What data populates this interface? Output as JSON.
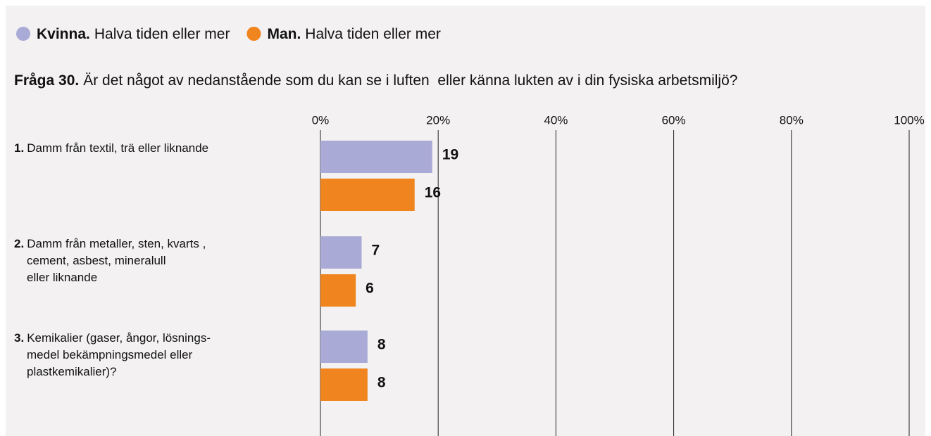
{
  "chart_data": {
    "type": "hbar",
    "title_label": "Fråga 30.",
    "title": "Är det något av nedanstående som du kan se i luften  eller känna lukten av i din fysiska arbetsmiljö?",
    "category_numbers": [
      "1.",
      "2.",
      "3."
    ],
    "categories": [
      [
        "Damm från textil, trä eller liknande"
      ],
      [
        "Damm från metaller, sten, kvarts ,",
        "cement, asbest, mineralull",
        "eller liknande"
      ],
      [
        "Kemikalier (gaser, ångor, lösnings-",
        "medel bekämpningsmedel eller",
        "plastkemikalier)?"
      ]
    ],
    "series": [
      {
        "name": "Kvinna.",
        "note": "Halva tiden eller mer",
        "color": "#aaaad6",
        "values": [
          19,
          7,
          8
        ]
      },
      {
        "name": "Man.",
        "note": "Halva tiden eller mer",
        "color": "#f0841e",
        "values": [
          16,
          6,
          8
        ]
      }
    ],
    "xlim": [
      0,
      100
    ],
    "xticks": [
      {
        "value": 0,
        "label": "0%"
      },
      {
        "value": 20,
        "label": "20%"
      },
      {
        "value": 40,
        "label": "40%"
      },
      {
        "value": 60,
        "label": "60%"
      },
      {
        "value": 80,
        "label": "80%"
      },
      {
        "value": 100,
        "label": "100%"
      }
    ],
    "grid": true
  }
}
